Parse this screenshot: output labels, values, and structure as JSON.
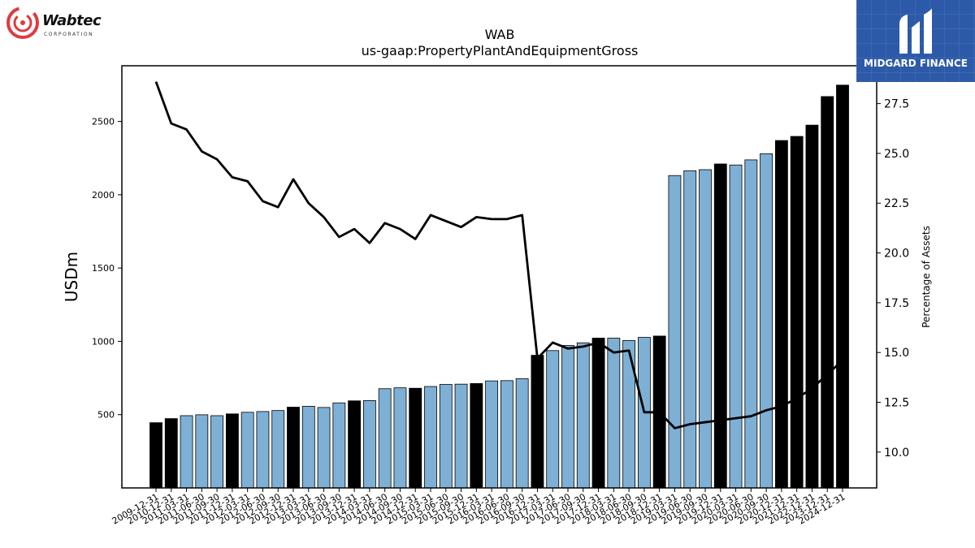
{
  "logos": {
    "left_name": "Wabtec",
    "left_sub": "CORPORATION",
    "right_name": "MIDGARD FINANCE"
  },
  "colors": {
    "bar_light": "#7eb0d5",
    "bar_dark": "#000000",
    "line": "#000000",
    "brand_blue": "#2d5aa8",
    "wabtec_red": "#e03a3e"
  },
  "chart_data": {
    "type": "bar",
    "title": "WAB",
    "subtitle": "us-gaap:PropertyPlantAndEquipmentGross",
    "ylabel": "USDm",
    "y2label": "Percentage of Assets",
    "ylim": [
      0,
      2880
    ],
    "y2lim": [
      8.2,
      29.4
    ],
    "yticks": [
      500,
      1000,
      1500,
      2000,
      2500
    ],
    "y2ticks": [
      "10.0",
      "12.5",
      "15.0",
      "17.5",
      "20.0",
      "22.5",
      "25.0",
      "27.5"
    ],
    "categories": [
      "2009-12-31",
      "2010-12-31",
      "2011-03-31",
      "2011-06-30",
      "2011-09-30",
      "2011-12-31",
      "2012-03-31",
      "2012-06-30",
      "2012-09-30",
      "2012-12-31",
      "2013-03-31",
      "2013-06-30",
      "2013-09-30",
      "2013-12-31",
      "2014-03-31",
      "2014-06-30",
      "2014-09-30",
      "2014-12-31",
      "2015-03-31",
      "2015-06-30",
      "2015-09-30",
      "2015-12-31",
      "2016-03-31",
      "2016-06-30",
      "2016-09-30",
      "2016-12-31",
      "2017-03-31",
      "2017-06-30",
      "2017-09-30",
      "2017-12-31",
      "2018-03-31",
      "2018-06-30",
      "2018-09-30",
      "2018-12-31",
      "2019-03-31",
      "2019-06-30",
      "2019-09-30",
      "2019-12-31",
      "2020-03-31",
      "2020-06-30",
      "2020-09-30",
      "2020-12-31",
      "2021-12-31",
      "2022-12-31",
      "2023-12-31",
      "2024-12-31"
    ],
    "series": [
      {
        "role": "bars",
        "values": [
          445,
          473,
          493,
          499,
          493,
          505,
          516,
          521,
          528,
          551,
          557,
          549,
          580,
          594,
          596,
          677,
          683,
          680,
          692,
          706,
          708,
          712,
          730,
          732,
          745,
          905,
          937,
          972,
          990,
          1022,
          1022,
          1006,
          1027,
          1036,
          2131,
          2164,
          2171,
          2210,
          2203,
          2238,
          2280,
          2370,
          2398,
          2475,
          2670,
          2748
        ],
        "annual": [
          true,
          true,
          false,
          false,
          false,
          true,
          false,
          false,
          false,
          true,
          false,
          false,
          false,
          true,
          false,
          false,
          false,
          true,
          false,
          false,
          false,
          true,
          false,
          false,
          false,
          true,
          false,
          false,
          false,
          true,
          false,
          false,
          false,
          true,
          false,
          false,
          false,
          true,
          false,
          false,
          false,
          true,
          true,
          true,
          true,
          true
        ]
      },
      {
        "role": "line",
        "values": [
          28.6,
          26.5,
          26.2,
          25.1,
          24.7,
          23.8,
          23.6,
          22.6,
          22.3,
          23.7,
          22.5,
          21.8,
          20.8,
          21.2,
          20.5,
          21.5,
          21.2,
          20.7,
          21.9,
          21.6,
          21.3,
          21.8,
          21.7,
          21.7,
          21.9,
          14.7,
          15.5,
          15.2,
          15.3,
          15.5,
          15.0,
          15.1,
          12.0,
          12.0,
          11.2,
          11.4,
          11.5,
          11.6,
          11.7,
          11.8,
          12.1,
          12.3,
          12.7,
          13.2,
          13.9,
          14.6
        ]
      }
    ],
    "grid": false,
    "legend": "none"
  }
}
